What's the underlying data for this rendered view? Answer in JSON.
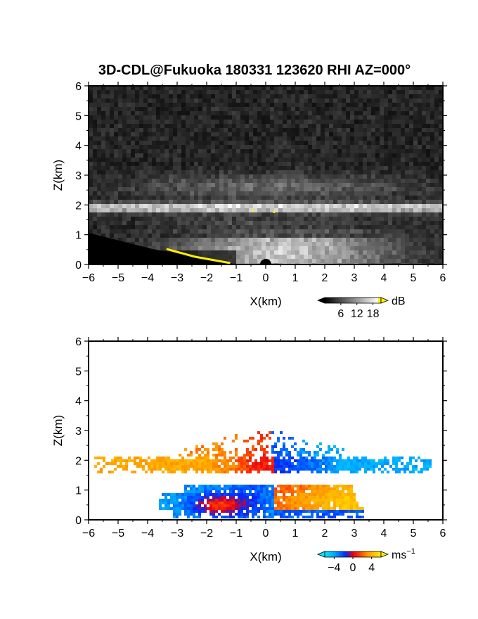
{
  "chart_data": [
    {
      "type": "heatmap",
      "title": "3D-CDL@Fukuoka 180331 123620 RHI AZ=000°",
      "xlabel": "X(km)",
      "ylabel": "Z(km)",
      "xlim": [
        -6,
        6
      ],
      "ylim": [
        0,
        6
      ],
      "xticks": [
        "-6",
        "-5",
        "-4",
        "-3",
        "-2",
        "-1",
        "0",
        "1",
        "2",
        "3",
        "4",
        "5",
        "6"
      ],
      "yticks": [
        "0",
        "1",
        "2",
        "3",
        "4",
        "5",
        "6"
      ],
      "colorbar": {
        "label": "dB",
        "ticks": [
          "6",
          "12",
          "18"
        ],
        "tick_values": [
          6,
          12,
          18
        ],
        "range": [
          0,
          21
        ],
        "colormap": "grayscale",
        "colors": [
          "#000000",
          "#ffffff",
          "#ffee00"
        ]
      },
      "features": [
        {
          "layer": "bright backscatter band",
          "z_km": [
            1.7,
            2.1
          ],
          "x_km": [
            -6,
            6
          ],
          "peak_db": 18
        },
        {
          "layer": "diffuse upper layer",
          "z_km": [
            2.3,
            3.1
          ],
          "x_km": [
            -4,
            5
          ],
          "peak_db": 8
        },
        {
          "layer": "boundary layer",
          "z_km": [
            0,
            1.3
          ],
          "x_km": [
            -4,
            5
          ],
          "peak_db": 14
        }
      ]
    },
    {
      "type": "heatmap",
      "title": "",
      "xlabel": "X(km)",
      "ylabel": "Z(km)",
      "xlim": [
        -6,
        6
      ],
      "ylim": [
        0,
        6
      ],
      "xticks": [
        "-6",
        "-5",
        "-4",
        "-3",
        "-2",
        "-1",
        "0",
        "1",
        "2",
        "3",
        "4",
        "5",
        "6"
      ],
      "yticks": [
        "0",
        "1",
        "2",
        "3",
        "4",
        "5",
        "6"
      ],
      "colorbar": {
        "label": "ms",
        "label_sup": "−1",
        "ticks": [
          "−4",
          "0",
          "4"
        ],
        "tick_values": [
          -4,
          0,
          4
        ],
        "range": [
          -6,
          6
        ],
        "colormap": "cyan-blue-red-yellow",
        "colors": [
          "#00e0ff",
          "#0030ff",
          "#ff1010",
          "#ffee00"
        ]
      },
      "features": [
        {
          "layer": "main echo layer",
          "z_km": [
            1.6,
            2.15
          ],
          "x_km": [
            -5.8,
            5.6
          ],
          "velocity_left": 3.5,
          "velocity_right": -4
        },
        {
          "layer": "upper echo layer",
          "z_km": [
            2.15,
            3.15
          ],
          "x_km": [
            -3.0,
            2.7
          ],
          "velocity_left": 3,
          "velocity_right": -4
        },
        {
          "layer": "lower echo layer",
          "z_km": [
            0,
            1.2
          ],
          "x_km": [
            -3.6,
            3.7
          ],
          "velocity_left": -4,
          "velocity_right": 3
        }
      ]
    }
  ]
}
